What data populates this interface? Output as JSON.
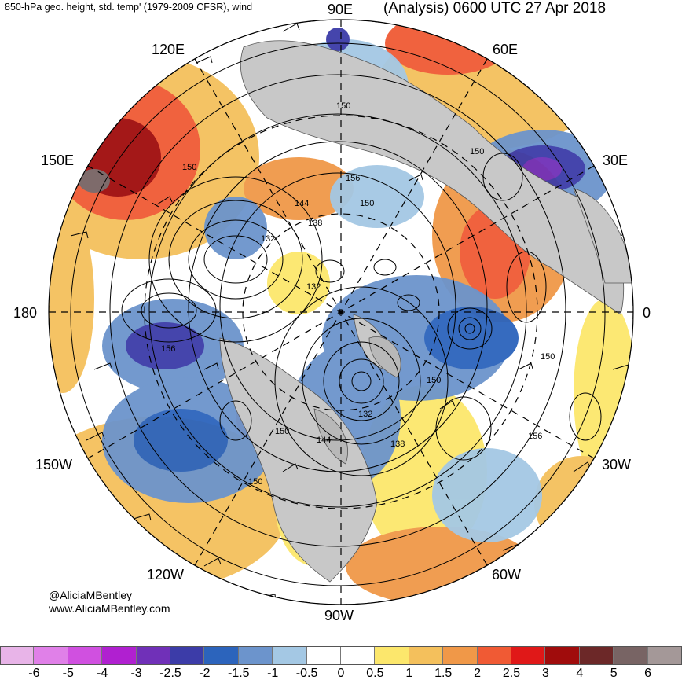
{
  "header": {
    "left_title": "850-hPa geo. height, std. temp' (1979-2009 CFSR), wind",
    "right_title": "(Analysis) 0600 UTC 27 Apr 2018"
  },
  "map": {
    "projection": "north-polar-stereographic",
    "longitude_labels": {
      "e90": "90E",
      "e60": "60E",
      "e30": "30E",
      "zero": "0",
      "w30": "30W",
      "w60": "60W",
      "w90": "90W",
      "w120": "120W",
      "w150": "150W",
      "dateline": "180",
      "e150": "150E",
      "e120": "120E"
    },
    "contour_labels": {
      "c1": "150",
      "c2": "156",
      "c3": "150",
      "c4": "144",
      "c5": "138",
      "c6": "132",
      "c7": "132",
      "c8": "150",
      "c9": "156",
      "c10": "150",
      "c11": "150",
      "c12": "132",
      "c13": "138",
      "c14": "144",
      "c15": "150",
      "c16": "156",
      "c17": "150",
      "c18": "150"
    }
  },
  "credit": {
    "handle": "@AliciaMBentley",
    "website": "www.AliciaMBentley.com"
  },
  "colorbar": {
    "colors": [
      "#e8b4e8",
      "#e080e8",
      "#d050e0",
      "#b020d0",
      "#7030b8",
      "#3c3ca8",
      "#2c64bc",
      "#6c94cc",
      "#a4c8e4",
      "#ffffff",
      "#ffffff",
      "#fce76c",
      "#f4c05c",
      "#f09848",
      "#f05a34",
      "#e01818",
      "#a00c0c",
      "#6c2828",
      "#786464",
      "#a49898"
    ],
    "ticks": [
      "-6",
      "-5",
      "-4",
      "-3",
      "-2.5",
      "-2",
      "-1.5",
      "-1",
      "-0.5",
      "0",
      "0.5",
      "1",
      "1.5",
      "2",
      "2.5",
      "3",
      "4",
      "5",
      "6"
    ]
  }
}
